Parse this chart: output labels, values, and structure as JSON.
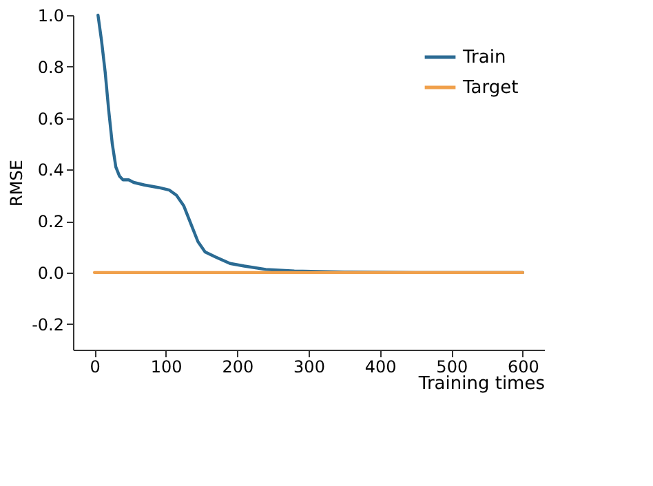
{
  "chart_data": {
    "type": "line",
    "xlabel": "Training times",
    "ylabel": "RMSE",
    "xlim": [
      -30,
      630
    ],
    "xticks": [
      0,
      100,
      200,
      300,
      400,
      500,
      600
    ],
    "ylim": [
      -0.3,
      1.0
    ],
    "yticks": [
      {
        "value": -0.2,
        "label": "-0.2"
      },
      {
        "value": 0,
        "label": "0.0"
      },
      {
        "value": 0.2,
        "label": "0.2"
      },
      {
        "value": 0.4,
        "label": "0.4"
      },
      {
        "value": 0.6,
        "label": "0.6"
      },
      {
        "value": 0.8,
        "label": "0.8"
      },
      {
        "value": 1.0,
        "label": "1.0"
      }
    ],
    "grid": false,
    "legend": "top right",
    "line_style": "solid",
    "marker": "none",
    "series": [
      {
        "name": "Train",
        "color": "#2b6b93",
        "x": [
          5,
          10,
          15,
          20,
          25,
          30,
          35,
          40,
          48,
          55,
          70,
          90,
          105,
          115,
          125,
          135,
          145,
          155,
          170,
          190,
          210,
          240,
          280,
          350,
          450,
          600
        ],
        "values": [
          1.0,
          0.9,
          0.78,
          0.63,
          0.5,
          0.41,
          0.375,
          0.36,
          0.36,
          0.35,
          0.34,
          0.33,
          0.32,
          0.3,
          0.26,
          0.19,
          0.12,
          0.08,
          0.06,
          0.035,
          0.025,
          0.012,
          0.006,
          0.002,
          0,
          0
        ]
      },
      {
        "name": "Target",
        "color": "#f0a04b",
        "x": [
          0,
          600
        ],
        "values": [
          0,
          0
        ]
      }
    ]
  }
}
